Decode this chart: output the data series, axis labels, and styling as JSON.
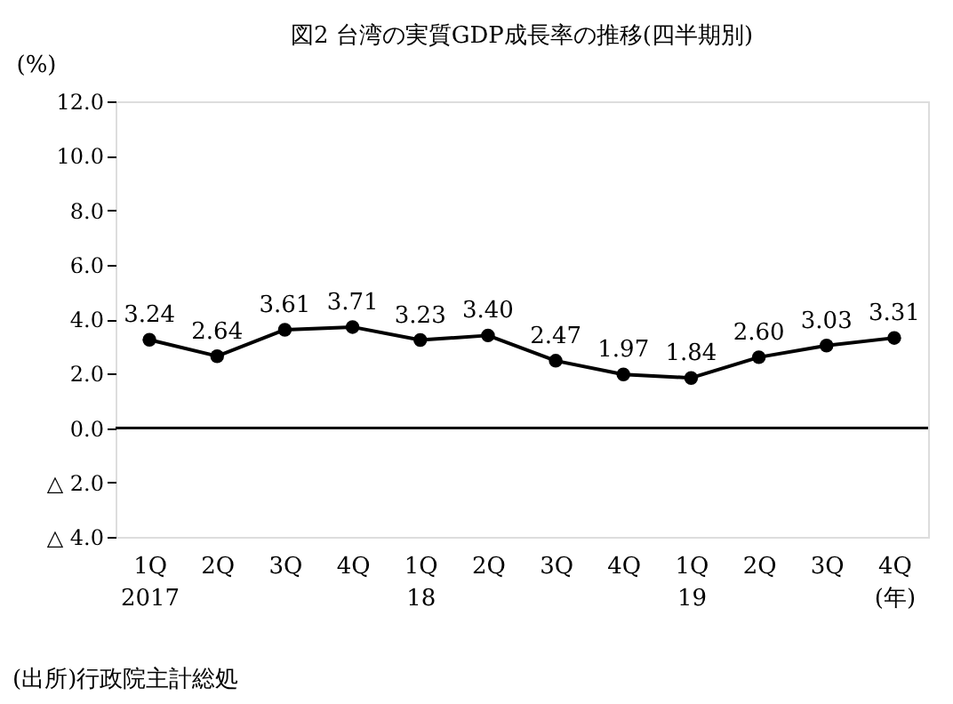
{
  "chart_data": {
    "type": "line",
    "title": "図2  台湾の実質GDP成長率の推移(四半期別)",
    "ylabel": "(%)",
    "categories": [
      "1Q\n2017",
      "2Q",
      "3Q",
      "4Q",
      "1Q\n18",
      "2Q",
      "3Q",
      "4Q",
      "1Q\n19",
      "2Q",
      "3Q",
      "4Q\n(年)"
    ],
    "series": [
      {
        "color": "#000000",
        "values": [
          3.24,
          2.64,
          3.61,
          3.71,
          3.23,
          3.4,
          2.47,
          1.97,
          1.84,
          2.6,
          3.03,
          3.31
        ],
        "value_labels": [
          "3.24",
          "2.64",
          "3.61",
          "3.71",
          "3.23",
          "3.40",
          "2.47",
          "1.97",
          "1.84",
          "2.60",
          "3.03",
          "3.31"
        ]
      }
    ],
    "ylim": [
      -4,
      12
    ],
    "yticks": [
      {
        "value": 12,
        "label": "12.0"
      },
      {
        "value": 10,
        "label": "10.0"
      },
      {
        "value": 8,
        "label": "8.0"
      },
      {
        "value": 6,
        "label": "6.0"
      },
      {
        "value": 4,
        "label": "4.0"
      },
      {
        "value": 2,
        "label": "2.0"
      },
      {
        "value": 0,
        "label": "0.0"
      },
      {
        "value": -2,
        "label": "△ 2.0"
      },
      {
        "value": -4,
        "label": "△ 4.0"
      }
    ],
    "ref_lines": [
      {
        "axis": "y",
        "value": 0,
        "color": "#000000"
      }
    ],
    "marker": "circle",
    "line_style": "solid",
    "grid": false,
    "annotations": [
      "(出所)行政院主計総処"
    ]
  }
}
